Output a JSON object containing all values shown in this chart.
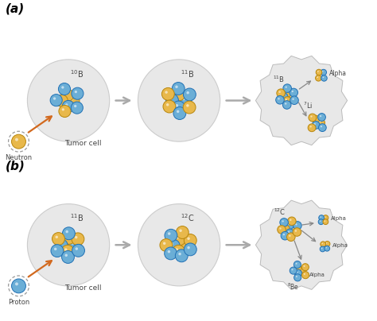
{
  "background_color": "#ffffff",
  "cell_bg": "#e8e8e8",
  "cell_edge": "#cccccc",
  "panel_a_label": "(a)",
  "panel_b_label": "(b)",
  "gold_color": "#E8B84B",
  "blue_color": "#6BAED6",
  "gold_edge": "#B8860B",
  "blue_edge": "#2171B5",
  "arrow_color": "#D2691E",
  "gray_arrow_color": "#AAAAAA",
  "dashed_color": "#999999",
  "text_color": "#444444",
  "neutron_label": "Neutron",
  "proton_label": "Proton",
  "tumor_label": "Tumor cell",
  "fig_width": 4.74,
  "fig_height": 4.04,
  "dpi": 100
}
